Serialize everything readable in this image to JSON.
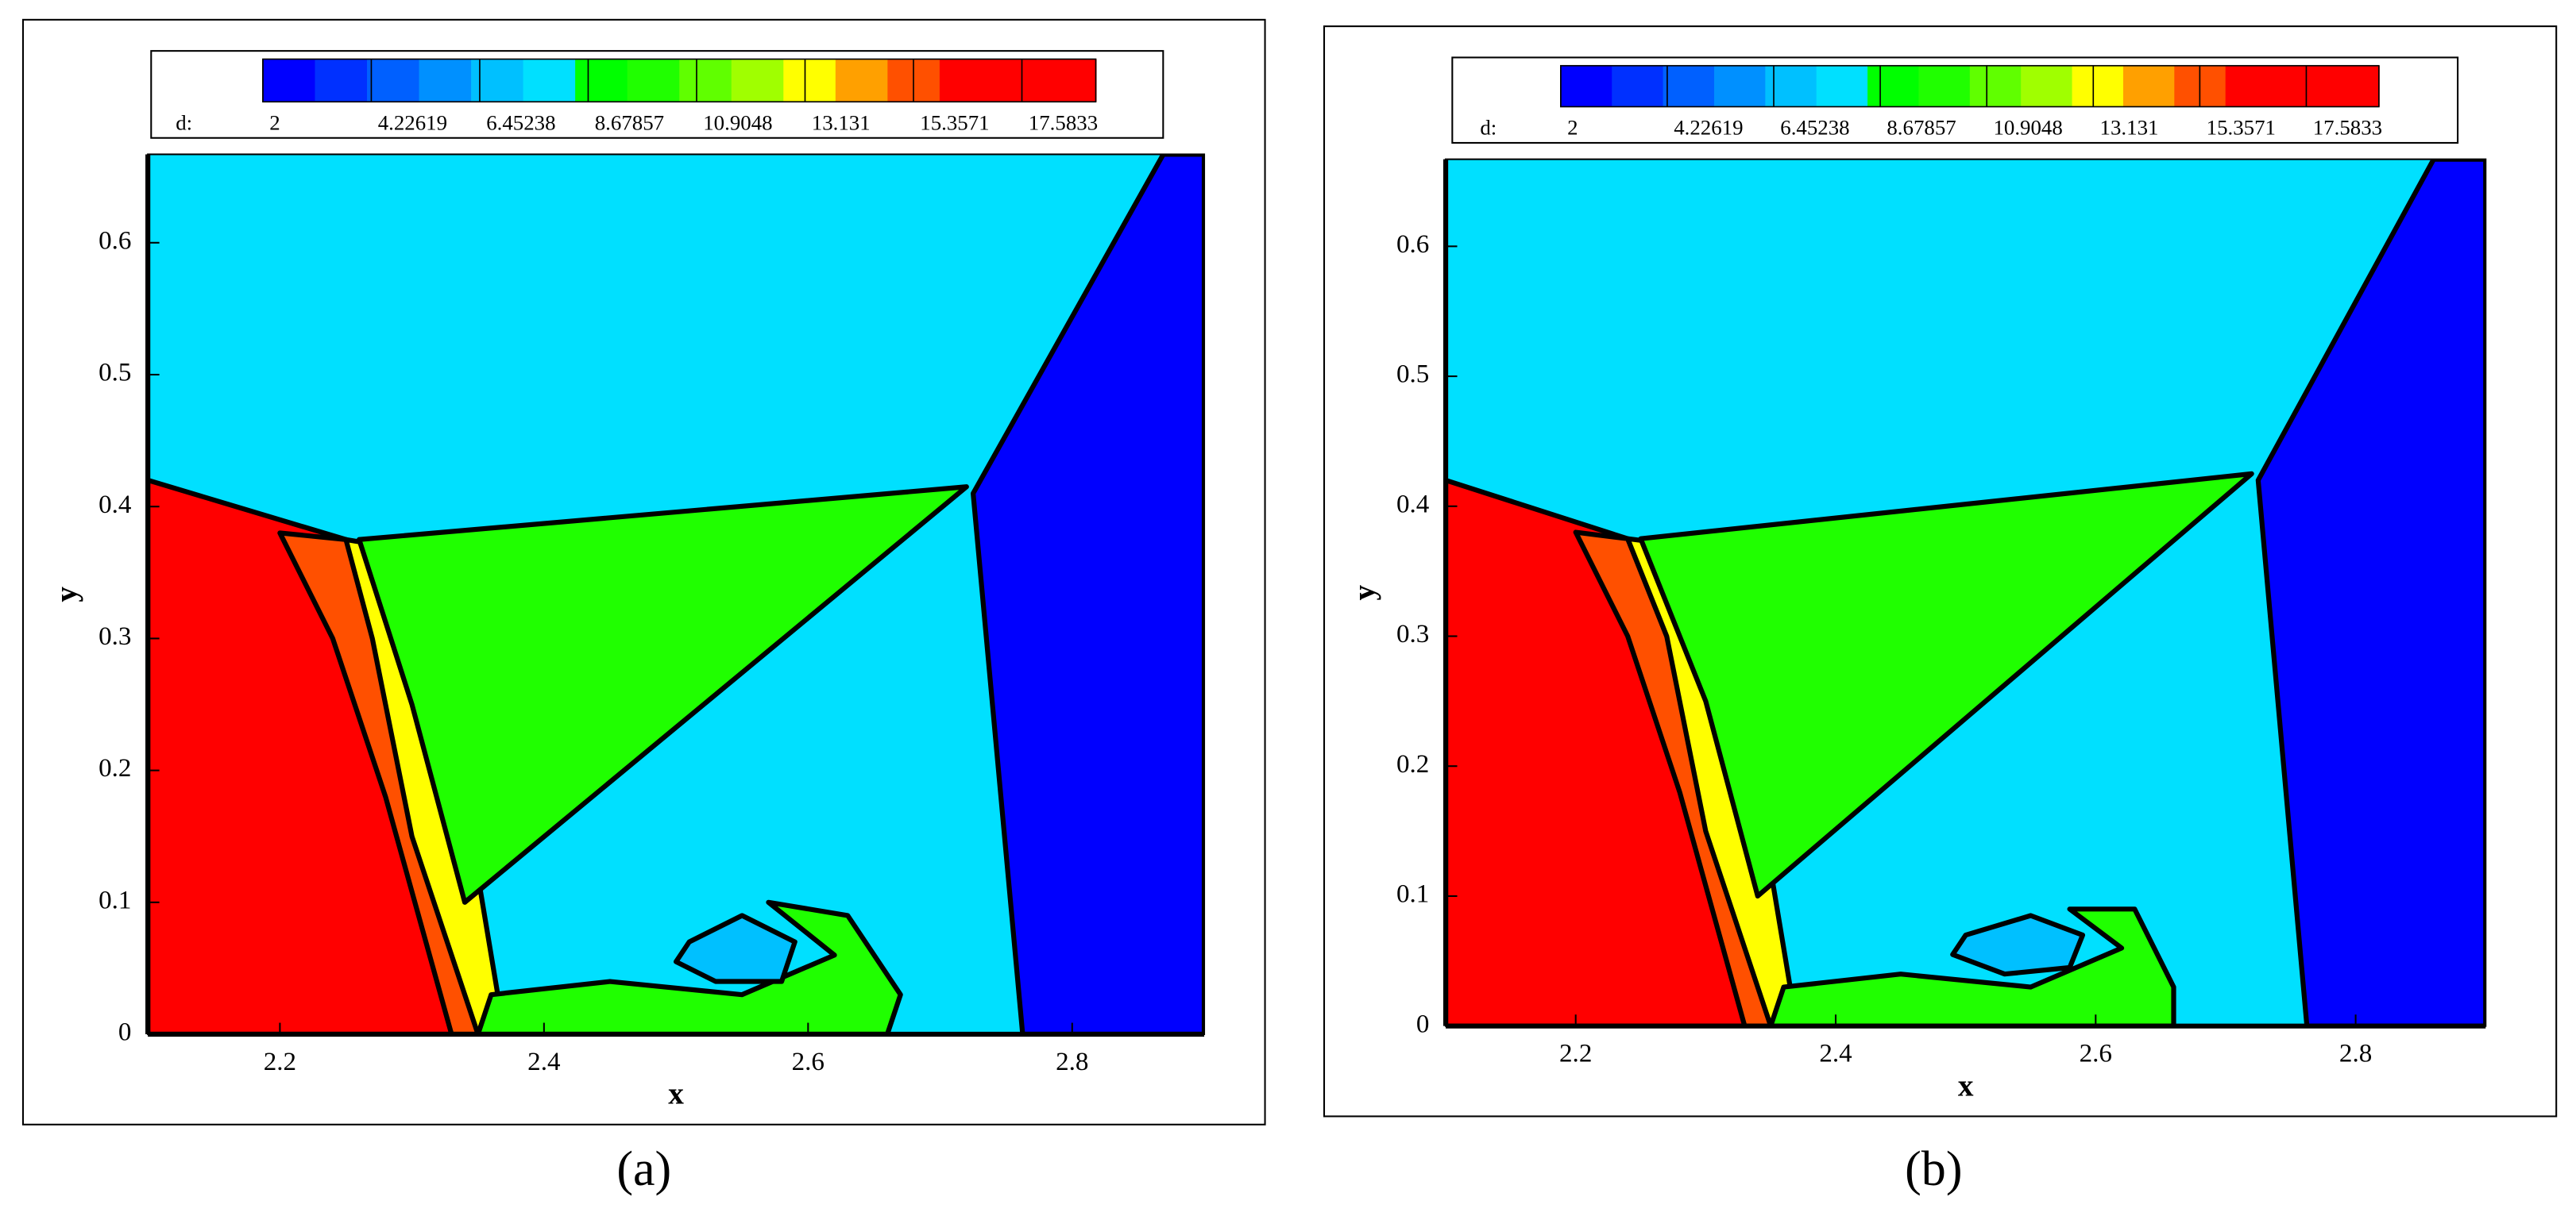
{
  "chart_data": [
    {
      "type": "contour",
      "caption": "(a)",
      "colorbar_label": "d:",
      "clim": [
        2,
        19.1
      ],
      "colorbar_ticks": [
        2,
        4.22619,
        6.45238,
        8.67857,
        10.9048,
        13.131,
        15.3571,
        17.5833
      ],
      "colormap": [
        "#0000ff",
        "#0030ff",
        "#0060ff",
        "#0090ff",
        "#00c0ff",
        "#00e0ff",
        "#00ff00",
        "#20ff00",
        "#60ff00",
        "#a0ff00",
        "#ffff00",
        "#ffa000",
        "#ff5000",
        "#ff0000",
        "#ff0000",
        "#ff0000"
      ],
      "xlabel": "x",
      "ylabel": "y",
      "xlim": [
        2.1,
        2.9
      ],
      "ylim": [
        0,
        0.667
      ],
      "xticks": [
        2.2,
        2.4,
        2.6,
        2.8
      ],
      "yticks": [
        0,
        0.1,
        0.2,
        0.3,
        0.4,
        0.5,
        0.6
      ],
      "regions": [
        {
          "value": 8,
          "x": [
            2.1,
            2.9,
            2.9,
            2.1
          ],
          "y": [
            0,
            0,
            0.667,
            0.667
          ]
        },
        {
          "value": 2.5,
          "x": [
            2.7625,
            2.725,
            2.869,
            2.9,
            2.9
          ],
          "y": [
            0,
            0.41,
            0.667,
            0.667,
            0
          ]
        },
        {
          "value": 17.5,
          "x": [
            2.1,
            2.25,
            2.3,
            2.36,
            2.36,
            2.1
          ],
          "y": [
            0.42,
            0.375,
            0.2,
            0.05,
            0,
            0
          ]
        },
        {
          "value": 15.5,
          "x": [
            2.2,
            2.25,
            2.31,
            2.36,
            2.33,
            2.28,
            2.24
          ],
          "y": [
            0.38,
            0.375,
            0.2,
            0,
            0,
            0.18,
            0.3
          ]
        },
        {
          "value": 13.2,
          "x": [
            2.25,
            2.28,
            2.32,
            2.35,
            2.37,
            2.35,
            2.3,
            2.27
          ],
          "y": [
            0.375,
            0.37,
            0.25,
            0.12,
            0,
            0,
            0.15,
            0.3
          ]
        },
        {
          "value": 10,
          "x": [
            2.26,
            2.72,
            2.34,
            2.3
          ],
          "y": [
            0.375,
            0.415,
            0.1,
            0.25
          ]
        },
        {
          "value": 10.5,
          "x": [
            2.57,
            2.63,
            2.67,
            2.66,
            2.35,
            2.36,
            2.45,
            2.55,
            2.62
          ],
          "y": [
            0.1,
            0.09,
            0.03,
            0,
            0,
            0.03,
            0.04,
            0.03,
            0.06
          ]
        },
        {
          "value": 6.8,
          "x": [
            2.51,
            2.55,
            2.59,
            2.58,
            2.53,
            2.5
          ],
          "y": [
            0.07,
            0.09,
            0.07,
            0.04,
            0.04,
            0.055
          ]
        }
      ]
    },
    {
      "type": "contour",
      "caption": "(b)",
      "colorbar_label": "d:",
      "clim": [
        2,
        19.1
      ],
      "colorbar_ticks": [
        2,
        4.22619,
        6.45238,
        8.67857,
        10.9048,
        13.131,
        15.3571,
        17.5833
      ],
      "colormap": [
        "#0000ff",
        "#0030ff",
        "#0060ff",
        "#0090ff",
        "#00c0ff",
        "#00e0ff",
        "#00ff00",
        "#20ff00",
        "#60ff00",
        "#a0ff00",
        "#ffff00",
        "#ffa000",
        "#ff5000",
        "#ff0000",
        "#ff0000",
        "#ff0000"
      ],
      "xlabel": "x",
      "ylabel": "y",
      "xlim": [
        2.1,
        2.9
      ],
      "ylim": [
        0,
        0.667
      ],
      "xticks": [
        2.2,
        2.4,
        2.6,
        2.8
      ],
      "yticks": [
        0,
        0.1,
        0.2,
        0.3,
        0.4,
        0.5,
        0.6
      ],
      "regions": [
        {
          "value": 8,
          "x": [
            2.1,
            2.9,
            2.9,
            2.1
          ],
          "y": [
            0,
            0,
            0.667,
            0.667
          ]
        },
        {
          "value": 2.5,
          "x": [
            2.7625,
            2.725,
            2.86,
            2.9,
            2.9
          ],
          "y": [
            0,
            0.42,
            0.667,
            0.667,
            0
          ]
        },
        {
          "value": 17.5,
          "x": [
            2.1,
            2.24,
            2.3,
            2.36,
            2.36,
            2.1
          ],
          "y": [
            0.42,
            0.375,
            0.2,
            0.05,
            0,
            0
          ]
        },
        {
          "value": 15.5,
          "x": [
            2.2,
            2.24,
            2.31,
            2.36,
            2.33,
            2.28,
            2.24
          ],
          "y": [
            0.38,
            0.375,
            0.2,
            0,
            0,
            0.18,
            0.3
          ]
        },
        {
          "value": 13.2,
          "x": [
            2.24,
            2.28,
            2.32,
            2.35,
            2.37,
            2.35,
            2.3,
            2.27
          ],
          "y": [
            0.375,
            0.37,
            0.25,
            0.12,
            0,
            0,
            0.15,
            0.3
          ]
        },
        {
          "value": 10,
          "x": [
            2.25,
            2.72,
            2.34,
            2.3
          ],
          "y": [
            0.375,
            0.425,
            0.1,
            0.25
          ]
        },
        {
          "value": 10.5,
          "x": [
            2.58,
            2.63,
            2.66,
            2.66,
            2.35,
            2.36,
            2.45,
            2.55,
            2.62
          ],
          "y": [
            0.09,
            0.09,
            0.03,
            0,
            0,
            0.03,
            0.04,
            0.03,
            0.06
          ]
        },
        {
          "value": 6.8,
          "x": [
            2.5,
            2.55,
            2.59,
            2.58,
            2.53,
            2.49
          ],
          "y": [
            0.07,
            0.085,
            0.07,
            0.045,
            0.04,
            0.055
          ]
        }
      ]
    }
  ]
}
